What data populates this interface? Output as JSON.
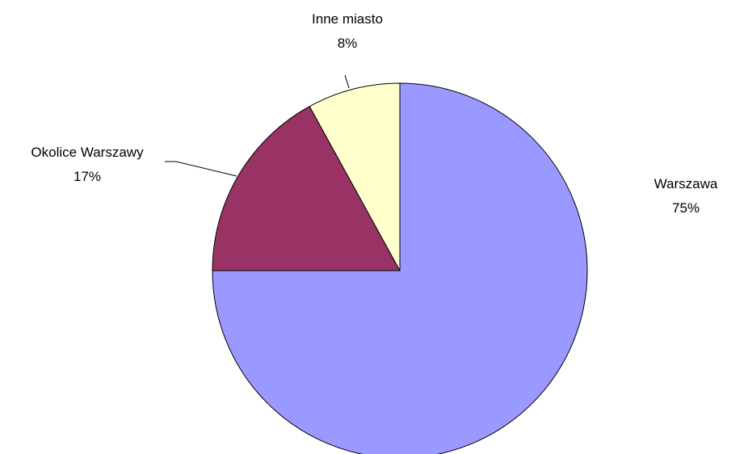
{
  "chart_data": {
    "type": "pie",
    "title": "",
    "slices": [
      {
        "label": "Warszawa",
        "value": 75,
        "value_label": "75%",
        "color": "#9999ff"
      },
      {
        "label": "Okolice Warszawy",
        "value": 17,
        "value_label": "17%",
        "color": "#993366"
      },
      {
        "label": "Inne miasto",
        "value": 8,
        "value_label": "8%",
        "color": "#ffffcc"
      }
    ],
    "start_angle_deg": 0,
    "direction": "clockwise",
    "legend": "none",
    "border_color": "#000000"
  }
}
